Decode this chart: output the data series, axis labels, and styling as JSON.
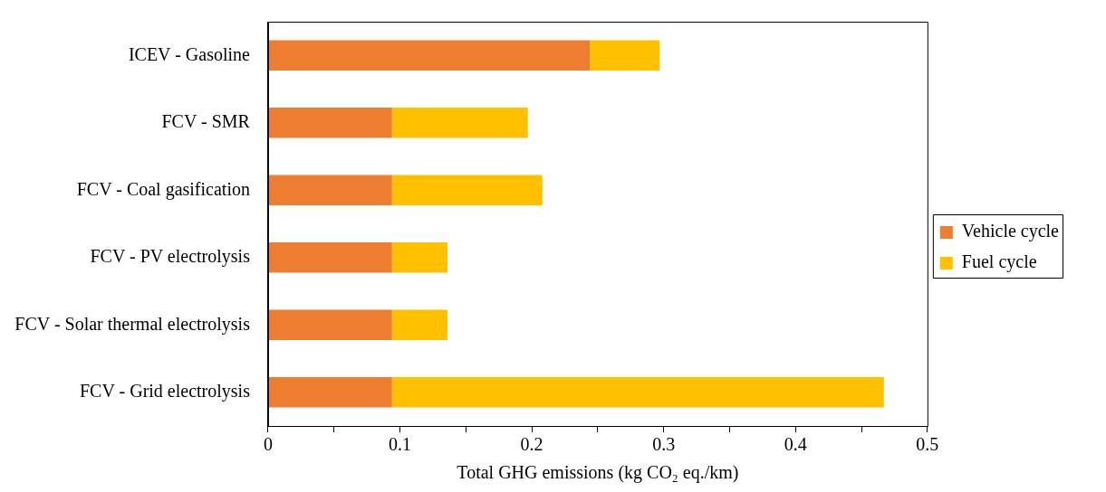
{
  "chart_data": {
    "type": "bar",
    "orientation": "horizontal",
    "stacked": true,
    "categories": [
      "ICEV - Gasoline",
      "FCV - SMR",
      "FCV - Coal gasification",
      "FCV - PV electrolysis",
      "FCV - Solar thermal electrolysis",
      "FCV - Grid electrolysis"
    ],
    "series": [
      {
        "name": "Vehicle cycle",
        "color": "#ed7d31",
        "values": [
          0.244,
          0.094,
          0.094,
          0.094,
          0.094,
          0.094
        ]
      },
      {
        "name": "Fuel cycle",
        "color": "#ffc000",
        "values": [
          0.053,
          0.103,
          0.114,
          0.042,
          0.042,
          0.373
        ]
      }
    ],
    "xlim": [
      0,
      0.5
    ],
    "xticks": [
      0,
      {
        "value": 0.05,
        "label": null
      },
      0.1,
      {
        "value": 0.15,
        "label": null
      },
      0.2,
      {
        "value": 0.25,
        "label": null
      },
      0.3,
      {
        "value": 0.35,
        "label": null
      },
      0.4,
      {
        "value": 0.45,
        "label": null
      },
      0.5
    ],
    "xlabel": "Total GHG emissions (kg CO₂ eq./km)",
    "grid": false,
    "legend": "right"
  }
}
